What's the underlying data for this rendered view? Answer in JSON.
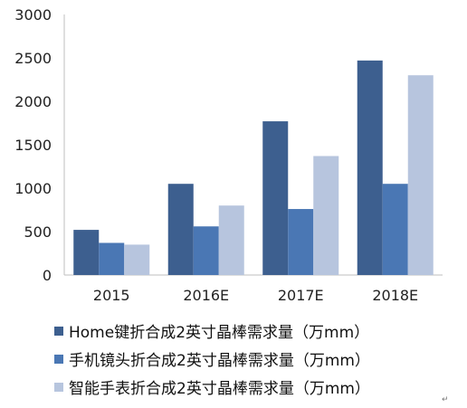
{
  "chart_data": {
    "type": "bar",
    "categories": [
      "2015",
      "2016E",
      "2017E",
      "2018E"
    ],
    "series": [
      {
        "name": "Home键折合成2英寸晶棒需求量（万mm）",
        "values": [
          520,
          1050,
          1770,
          2470
        ],
        "color": "#3d5f8f"
      },
      {
        "name": "手机镜头折合成2英寸晶棒需求量（万mm）",
        "values": [
          370,
          560,
          760,
          1050
        ],
        "color": "#4a77b4"
      },
      {
        "name": "智能手表折合成2英寸晶棒需求量（万mm）",
        "values": [
          350,
          800,
          1370,
          2300
        ],
        "color": "#b7c5de"
      }
    ],
    "yticks": [
      "0",
      "500",
      "1000",
      "1500",
      "2000",
      "2500",
      "3000"
    ],
    "ylim": [
      0,
      3000
    ],
    "grid": false,
    "legend_position": "bottom",
    "title": "",
    "xlabel": "",
    "ylabel": ""
  },
  "return_mark": "↵"
}
